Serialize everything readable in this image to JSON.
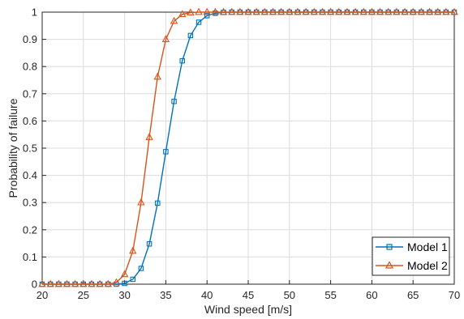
{
  "chart_data": {
    "type": "line",
    "xlabel": "Wind speed [m/s]",
    "ylabel": "Probability of failure",
    "xlim": [
      20,
      70
    ],
    "ylim": [
      0,
      1
    ],
    "xticks": [
      "20",
      "25",
      "30",
      "35",
      "40",
      "45",
      "50",
      "55",
      "60",
      "65",
      "70"
    ],
    "yticks": [
      "0",
      "0.1",
      "0.2",
      "0.3",
      "0.4",
      "0.5",
      "0.6",
      "0.7",
      "0.8",
      "0.9",
      "1"
    ],
    "grid": true,
    "legend_position": "bottom-right",
    "series": [
      {
        "name": "Model 1",
        "color": "#0072BD",
        "marker": "square",
        "x": [
          20,
          21,
          22,
          23,
          24,
          25,
          26,
          27,
          28,
          29,
          30,
          31,
          32,
          33,
          34,
          35,
          36,
          37,
          38,
          39,
          40,
          41,
          42,
          43,
          44,
          45,
          46,
          47,
          48,
          49,
          50,
          51,
          52,
          53,
          54,
          55,
          56,
          57,
          58,
          59,
          60,
          61,
          62,
          63,
          64,
          65,
          66,
          67,
          68,
          69,
          70
        ],
        "y": [
          0,
          0,
          0,
          0,
          0,
          0,
          0,
          0,
          0,
          0,
          0.003,
          0.018,
          0.058,
          0.148,
          0.298,
          0.487,
          0.672,
          0.821,
          0.914,
          0.963,
          0.987,
          0.996,
          0.999,
          1,
          1,
          1,
          1,
          1,
          1,
          1,
          1,
          1,
          1,
          1,
          1,
          1,
          1,
          1,
          1,
          1,
          1,
          1,
          1,
          1,
          1,
          1,
          1,
          1,
          1,
          1,
          1
        ]
      },
      {
        "name": "Model 2",
        "color": "#D95319",
        "marker": "triangle",
        "x": [
          20,
          21,
          22,
          23,
          24,
          25,
          26,
          27,
          28,
          29,
          30,
          31,
          32,
          33,
          34,
          35,
          36,
          37,
          38,
          39,
          40,
          41,
          42,
          43,
          44,
          45,
          46,
          47,
          48,
          49,
          50,
          51,
          52,
          53,
          54,
          55,
          56,
          57,
          58,
          59,
          60,
          61,
          62,
          63,
          64,
          65,
          66,
          67,
          68,
          69,
          70
        ],
        "y": [
          0,
          0,
          0,
          0,
          0,
          0,
          0,
          0,
          0,
          0.006,
          0.036,
          0.122,
          0.3,
          0.54,
          0.762,
          0.9,
          0.967,
          0.992,
          0.998,
          1,
          1,
          1,
          1,
          1,
          1,
          1,
          1,
          1,
          1,
          1,
          1,
          1,
          1,
          1,
          1,
          1,
          1,
          1,
          1,
          1,
          1,
          1,
          1,
          1,
          1,
          1,
          1,
          1,
          1,
          1,
          1
        ]
      }
    ]
  }
}
